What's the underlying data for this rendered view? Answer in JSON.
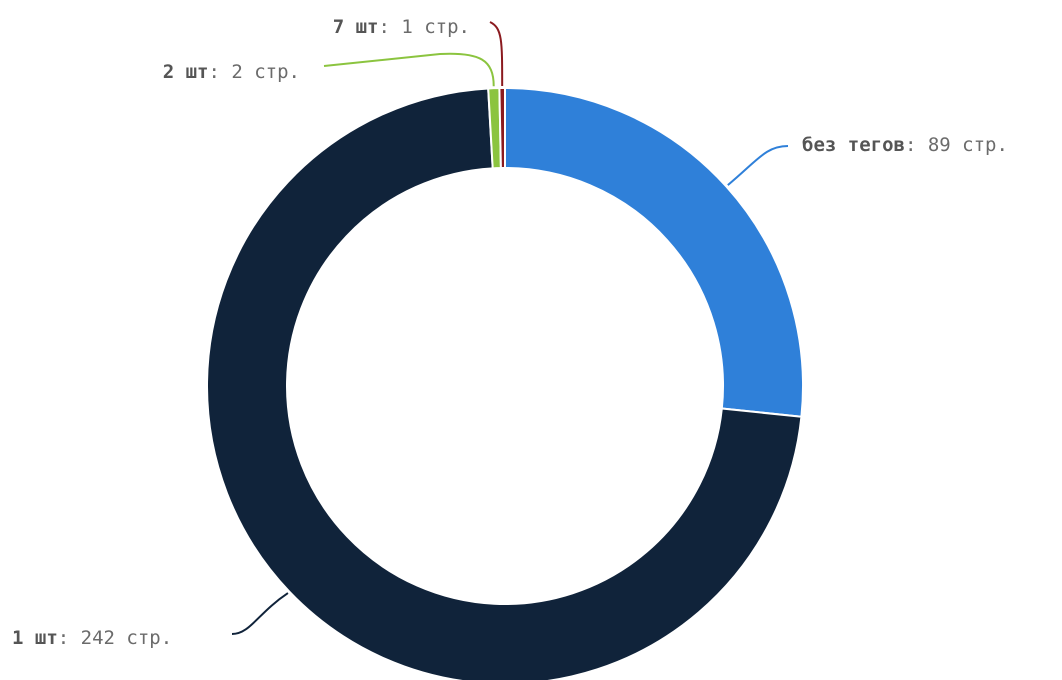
{
  "chart_data": {
    "type": "pie",
    "variant": "donut",
    "title": "",
    "unit_suffix": "стр.",
    "separator": ": ",
    "slices": [
      {
        "label": "без тегов",
        "value": 89,
        "color": "#2f80d9"
      },
      {
        "label": "1 шт",
        "value": 242,
        "color": "#10233a"
      },
      {
        "label": "2 шт",
        "value": 2,
        "color": "#8bc43f"
      },
      {
        "label": "7 шт",
        "value": 1,
        "color": "#8b1a1f"
      }
    ],
    "legend": "none",
    "data_labels": "outside-with-leader-lines"
  }
}
